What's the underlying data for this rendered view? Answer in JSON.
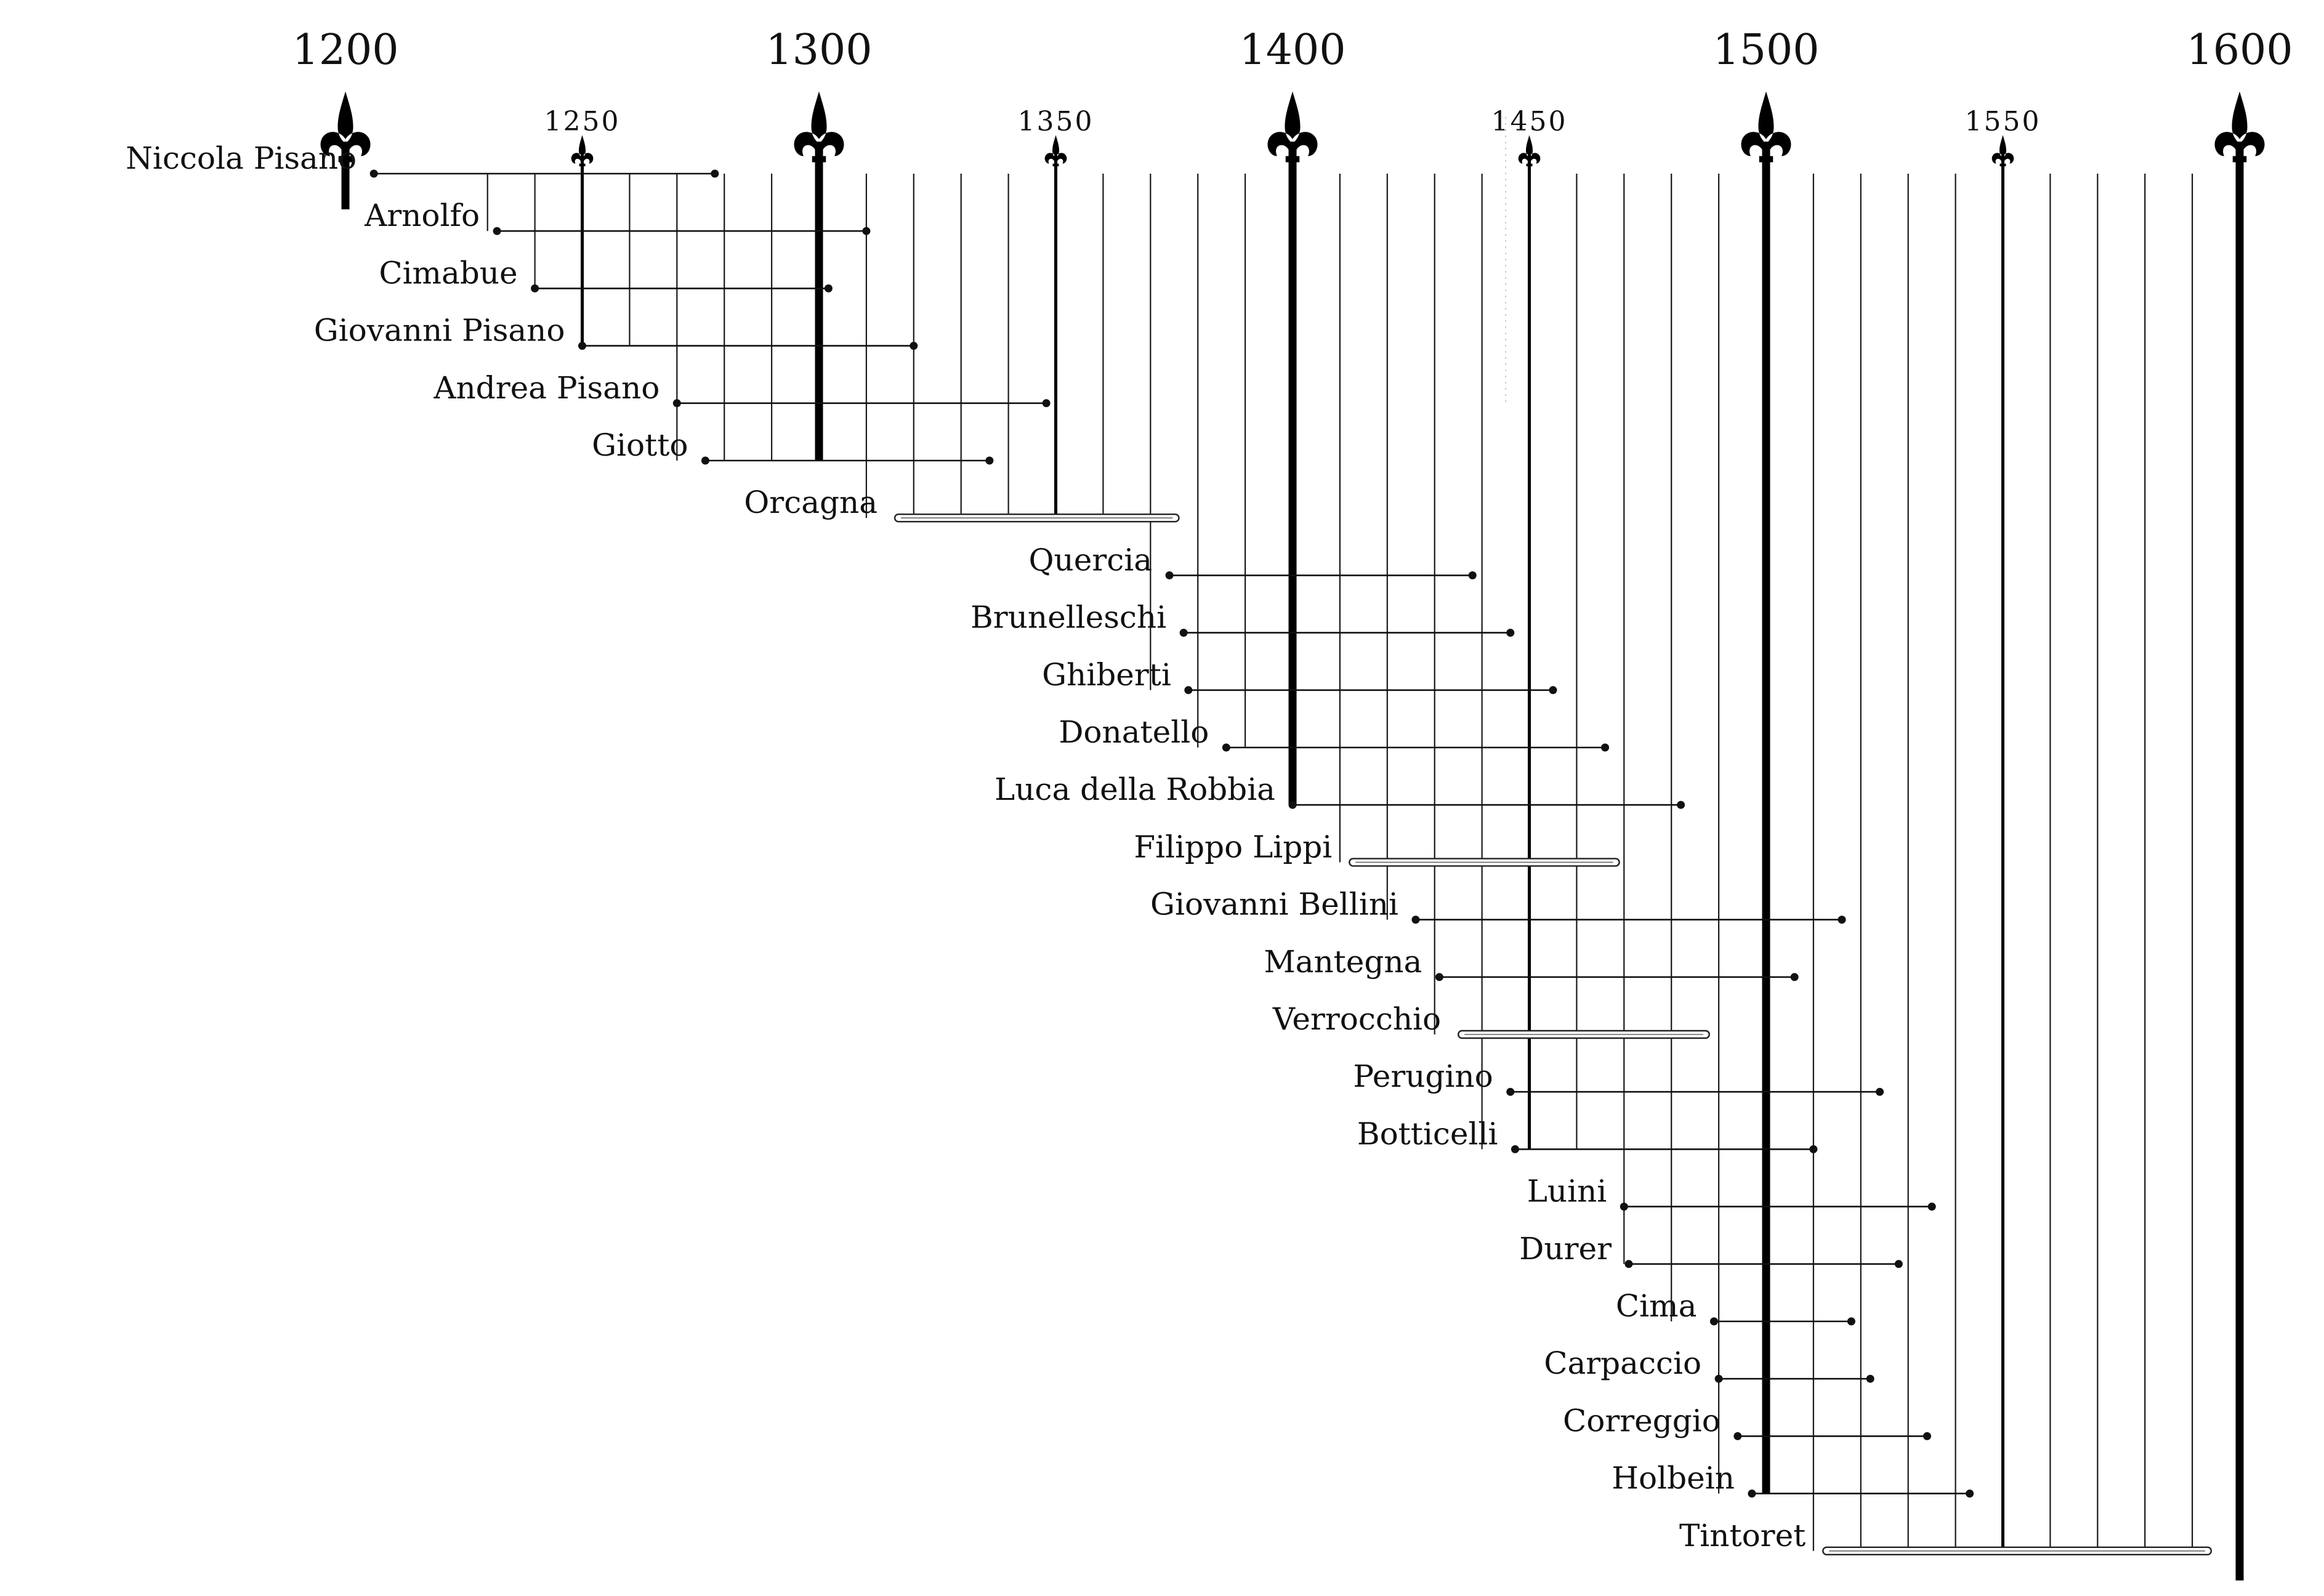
{
  "chart_data": {
    "type": "timeline",
    "title": "",
    "major_ticks": [
      "1200",
      "1300",
      "1400",
      "1500",
      "1600"
    ],
    "minor_ticks": [
      "1250",
      "1350",
      "1450",
      "1550"
    ],
    "x_range": [
      1200,
      1600
    ],
    "grid_step_years": 10,
    "artists": [
      {
        "name": "Niccola Pisano",
        "start": 1206,
        "end": 1278,
        "style": "line"
      },
      {
        "name": "Arnolfo",
        "start": 1232,
        "end": 1310,
        "style": "line"
      },
      {
        "name": "Cimabue",
        "start": 1240,
        "end": 1302,
        "style": "line"
      },
      {
        "name": "Giovanni Pisano",
        "start": 1250,
        "end": 1320,
        "style": "line"
      },
      {
        "name": "Andrea Pisano",
        "start": 1270,
        "end": 1348,
        "style": "line"
      },
      {
        "name": "Giotto",
        "start": 1276,
        "end": 1336,
        "style": "line"
      },
      {
        "name": "Orcagna",
        "start": 1316,
        "end": 1376,
        "style": "rod"
      },
      {
        "name": "Quercia",
        "start": 1374,
        "end": 1438,
        "style": "line"
      },
      {
        "name": "Brunelleschi",
        "start": 1377,
        "end": 1446,
        "style": "line"
      },
      {
        "name": "Ghiberti",
        "start": 1378,
        "end": 1455,
        "style": "line"
      },
      {
        "name": "Donatello",
        "start": 1386,
        "end": 1466,
        "style": "line"
      },
      {
        "name": "Luca della Robbia",
        "start": 1400,
        "end": 1482,
        "style": "line"
      },
      {
        "name": "Filippo Lippi",
        "start": 1412,
        "end": 1469,
        "style": "rod"
      },
      {
        "name": "Giovanni Bellini",
        "start": 1426,
        "end": 1516,
        "style": "line"
      },
      {
        "name": "Mantegna",
        "start": 1431,
        "end": 1506,
        "style": "line"
      },
      {
        "name": "Verrocchio",
        "start": 1435,
        "end": 1488,
        "style": "rod"
      },
      {
        "name": "Perugino",
        "start": 1446,
        "end": 1524,
        "style": "line"
      },
      {
        "name": "Botticelli",
        "start": 1447,
        "end": 1510,
        "style": "line"
      },
      {
        "name": "Luini",
        "start": 1470,
        "end": 1535,
        "style": "line"
      },
      {
        "name": "Durer",
        "start": 1471,
        "end": 1528,
        "style": "line"
      },
      {
        "name": "Cima",
        "start": 1489,
        "end": 1518,
        "style": "line"
      },
      {
        "name": "Carpaccio",
        "start": 1490,
        "end": 1522,
        "style": "line"
      },
      {
        "name": "Correggio",
        "start": 1494,
        "end": 1534,
        "style": "line"
      },
      {
        "name": "Holbein",
        "start": 1497,
        "end": 1543,
        "style": "line"
      },
      {
        "name": "Tintoret",
        "start": 1512,
        "end": 1594,
        "style": "rod"
      }
    ]
  }
}
